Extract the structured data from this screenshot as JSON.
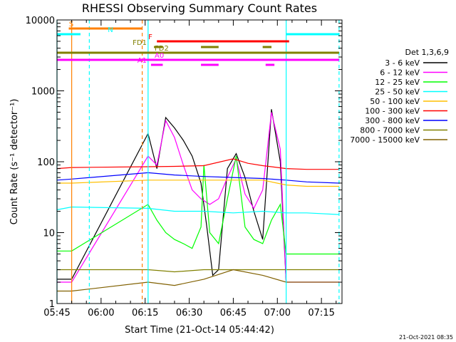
{
  "chart_data": {
    "type": "line",
    "title": "RHESSI Observing Summary Count Rates",
    "xlabel": "Start Time (21-Oct-14 05:44:42)",
    "ylabel": "Count Rate (s⁻¹ detector⁻¹)",
    "x_unit": "UT time (hh:mm)",
    "xlim": [
      "05:45",
      "07:22"
    ],
    "ylim": [
      1,
      10000
    ],
    "yscale": "log",
    "x_ticks": [
      "05:45",
      "06:00",
      "06:15",
      "06:30",
      "06:45",
      "07:00",
      "07:15"
    ],
    "y_ticks": [
      "1",
      "10",
      "100",
      "1000",
      "10000"
    ],
    "legend": {
      "title": "Det 1,3,6,9",
      "placement": "right",
      "entries": [
        {
          "label": "3 - 6 keV",
          "color": "#000000"
        },
        {
          "label": "6 - 12 keV",
          "color": "#ff00ff"
        },
        {
          "label": "12 - 25 keV",
          "color": "#00ff00"
        },
        {
          "label": "25 - 50 keV",
          "color": "#00ffff"
        },
        {
          "label": "50 - 100 keV",
          "color": "#ffbf00"
        },
        {
          "label": "100 - 300 keV",
          "color": "#ff0000"
        },
        {
          "label": "300 - 800 keV",
          "color": "#0000ff"
        },
        {
          "label": "800 - 7000 keV",
          "color": "#808000"
        },
        {
          "label": "7000 - 15000 keV",
          "color": "#806000"
        }
      ]
    },
    "flags": [
      {
        "label": "S",
        "color": "#ff8000",
        "segments": [
          [
            "05:49",
            "06:14"
          ]
        ]
      },
      {
        "label": "N",
        "color": "#00ffff",
        "segments": [
          [
            "05:45",
            "05:53"
          ],
          [
            "07:03",
            "07:21"
          ]
        ]
      },
      {
        "label": "F",
        "color": "#ff0000",
        "segments": [
          [
            "06:19",
            "07:04"
          ]
        ]
      },
      {
        "label": "FD1",
        "color": "#808000",
        "segments": [
          [
            "06:18",
            "06:21"
          ],
          [
            "06:34",
            "06:40"
          ],
          [
            "06:55",
            "06:58"
          ]
        ]
      },
      {
        "label": "FD2",
        "color": "#808000",
        "segments": [
          [
            "05:45",
            "07:21"
          ]
        ]
      },
      {
        "label": "A0",
        "color": "#ff00ff",
        "segments": [
          [
            "05:45",
            "07:21"
          ]
        ]
      },
      {
        "label": "A1",
        "color": "#ff00ff",
        "segments": [
          [
            "06:17",
            "06:21"
          ],
          [
            "06:34",
            "06:40"
          ],
          [
            "06:56",
            "06:59"
          ]
        ]
      }
    ],
    "vlines": [
      {
        "color": "#ff8000",
        "style": "solid",
        "x": "05:50"
      },
      {
        "color": "#00ffff",
        "style": "dashed",
        "x": "05:56"
      },
      {
        "color": "#ff8000",
        "style": "dashed",
        "x": "06:14"
      },
      {
        "color": "#00ffff",
        "style": "solid",
        "x": "06:16"
      },
      {
        "color": "#00ffff",
        "style": "solid",
        "x": "07:03"
      },
      {
        "color": "#00ffff",
        "style": "dashed",
        "x": "07:21"
      },
      {
        "color": "#00ffff",
        "style": "solid",
        "x": "05:45"
      }
    ],
    "gap": [
      "05:50",
      "06:16"
    ],
    "series": [
      {
        "name": "3 - 6 keV",
        "color": "#000000",
        "x": [
          "05:45",
          "05:50",
          "06:16",
          "06:19",
          "06:22",
          "06:25",
          "06:28",
          "06:31",
          "06:34",
          "06:36",
          "06:38",
          "06:40",
          "06:43",
          "06:46",
          "06:49",
          "06:52",
          "06:55",
          "06:58",
          "07:01",
          "07:03"
        ],
        "y": [
          2.2,
          2.2,
          250,
          80,
          420,
          300,
          200,
          120,
          50,
          12,
          2.5,
          3,
          80,
          130,
          60,
          20,
          8,
          550,
          100,
          2
        ]
      },
      {
        "name": "6 - 12 keV",
        "color": "#ff00ff",
        "x": [
          "05:45",
          "05:50",
          "06:16",
          "06:19",
          "06:22",
          "06:25",
          "06:28",
          "06:31",
          "06:34",
          "06:37",
          "06:40",
          "06:43",
          "06:46",
          "06:49",
          "06:52",
          "06:55",
          "06:58",
          "07:01",
          "07:03",
          "07:10",
          "07:21"
        ],
        "y": [
          2,
          2,
          120,
          90,
          380,
          220,
          90,
          40,
          30,
          25,
          30,
          60,
          110,
          35,
          22,
          40,
          500,
          150,
          2,
          2,
          2
        ]
      },
      {
        "name": "12 - 25 keV",
        "color": "#00ff00",
        "x": [
          "05:45",
          "05:50",
          "06:16",
          "06:19",
          "06:22",
          "06:25",
          "06:28",
          "06:31",
          "06:34",
          "06:35",
          "06:37",
          "06:40",
          "06:43",
          "06:46",
          "06:49",
          "06:52",
          "06:55",
          "06:58",
          "07:01",
          "07:03",
          "07:10",
          "07:21"
        ],
        "y": [
          5.5,
          5.5,
          25,
          15,
          10,
          8,
          7,
          6,
          12,
          90,
          10,
          7,
          30,
          120,
          12,
          8,
          7,
          15,
          25,
          5,
          5,
          5
        ]
      },
      {
        "name": "25 - 50 keV",
        "color": "#00ffff",
        "x": [
          "05:45",
          "05:50",
          "06:16",
          "06:25",
          "06:35",
          "06:45",
          "06:55",
          "07:03",
          "07:10",
          "07:21"
        ],
        "y": [
          21,
          23,
          22,
          20,
          20,
          19,
          20,
          19,
          19,
          18
        ]
      },
      {
        "name": "50 - 100 keV",
        "color": "#ffbf00",
        "x": [
          "05:45",
          "05:50",
          "06:16",
          "06:25",
          "06:35",
          "06:45",
          "06:55",
          "07:03",
          "07:10",
          "07:21"
        ],
        "y": [
          50,
          50,
          55,
          55,
          55,
          55,
          55,
          47,
          45,
          45
        ]
      },
      {
        "name": "100 - 300 keV",
        "color": "#ff0000",
        "x": [
          "05:45",
          "05:50",
          "06:16",
          "06:25",
          "06:35",
          "06:45",
          "06:50",
          "06:55",
          "07:03",
          "07:10",
          "07:21"
        ],
        "y": [
          80,
          83,
          85,
          86,
          88,
          110,
          95,
          88,
          80,
          78,
          78
        ]
      },
      {
        "name": "300 - 800 keV",
        "color": "#0000ff",
        "x": [
          "05:45",
          "05:50",
          "06:16",
          "06:25",
          "06:35",
          "06:45",
          "06:55",
          "07:03",
          "07:10",
          "07:21"
        ],
        "y": [
          55,
          57,
          70,
          65,
          62,
          60,
          58,
          55,
          52,
          50
        ]
      },
      {
        "name": "800 - 7000 keV",
        "color": "#808000",
        "x": [
          "05:45",
          "05:50",
          "06:16",
          "06:25",
          "06:35",
          "06:45",
          "06:55",
          "07:03",
          "07:10",
          "07:21"
        ],
        "y": [
          3,
          3,
          3,
          2.8,
          3,
          3,
          3,
          3,
          3,
          3
        ]
      },
      {
        "name": "7000 - 15000 keV",
        "color": "#806000",
        "x": [
          "05:45",
          "05:50",
          "06:16",
          "06:25",
          "06:35",
          "06:45",
          "06:55",
          "07:03",
          "07:10",
          "07:21"
        ],
        "y": [
          1.5,
          1.5,
          2,
          1.8,
          2.2,
          3,
          2.5,
          2,
          2,
          2
        ]
      }
    ]
  },
  "footer_stamp": "21-Oct-2021 08:35"
}
